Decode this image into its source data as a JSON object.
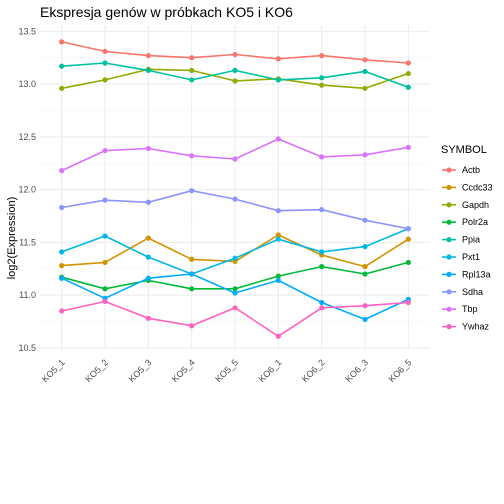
{
  "chart_data": {
    "type": "line",
    "title": "Ekspresja genów w próbkach KO5 i KO6",
    "xlabel": "",
    "ylabel": "log2(Expression)",
    "categories": [
      "KO5_1",
      "KO5_2",
      "KO5_3",
      "KO5_4",
      "KO5_5",
      "KO6_1",
      "KO6_2",
      "KO6_3",
      "KO6_5"
    ],
    "ylim": [
      10.48,
      13.56
    ],
    "yticks": [
      10.5,
      11.0,
      11.5,
      12.0,
      12.5,
      13.0,
      13.5
    ],
    "grid": true,
    "legend_title": "SYMBOL",
    "legend_position": "right",
    "series": [
      {
        "name": "Actb",
        "color": "#F8766D",
        "values": [
          13.4,
          13.31,
          13.27,
          13.25,
          13.28,
          13.24,
          13.27,
          13.23,
          13.2
        ]
      },
      {
        "name": "Ccdc33",
        "color": "#D39200",
        "values": [
          11.28,
          11.31,
          11.54,
          11.34,
          11.32,
          11.57,
          11.38,
          11.27,
          11.53
        ]
      },
      {
        "name": "Gapdh",
        "color": "#93AA00",
        "values": [
          12.96,
          13.04,
          13.14,
          13.13,
          13.03,
          13.05,
          12.99,
          12.96,
          13.1
        ]
      },
      {
        "name": "Polr2a",
        "color": "#00BA38",
        "values": [
          11.17,
          11.06,
          11.14,
          11.06,
          11.06,
          11.18,
          11.27,
          11.2,
          11.31
        ]
      },
      {
        "name": "Ppia",
        "color": "#00C19F",
        "values": [
          13.17,
          13.2,
          13.13,
          13.04,
          13.13,
          13.04,
          13.06,
          13.12,
          12.97
        ]
      },
      {
        "name": "Pxt1",
        "color": "#00B9E3",
        "values": [
          11.41,
          11.56,
          11.36,
          11.2,
          11.35,
          11.53,
          11.41,
          11.46,
          11.63
        ]
      },
      {
        "name": "Rpl13a",
        "color": "#00ADFA",
        "values": [
          11.16,
          10.97,
          11.16,
          11.2,
          11.02,
          11.14,
          10.93,
          10.77,
          10.96
        ]
      },
      {
        "name": "Sdha",
        "color": "#8C94FF",
        "values": [
          11.83,
          11.9,
          11.88,
          11.99,
          11.91,
          11.8,
          11.81,
          11.71,
          11.63
        ]
      },
      {
        "name": "Tbp",
        "color": "#DB72FB",
        "values": [
          12.18,
          12.37,
          12.39,
          12.32,
          12.29,
          12.48,
          12.31,
          12.33,
          12.4
        ]
      },
      {
        "name": "Ywhaz",
        "color": "#FF61C3",
        "values": [
          10.85,
          10.94,
          10.78,
          10.71,
          10.88,
          10.61,
          10.88,
          10.9,
          10.93
        ]
      }
    ]
  }
}
